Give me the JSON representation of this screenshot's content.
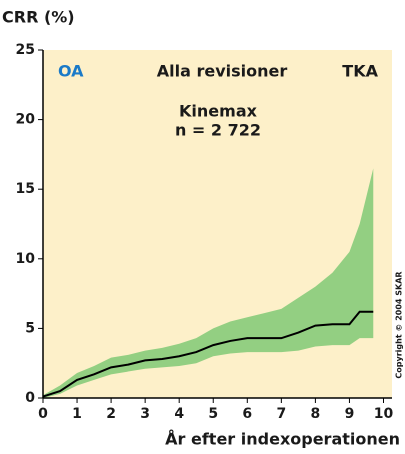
{
  "chart_data": {
    "type": "line",
    "y_label": "CRR (%)",
    "x_label": "År efter indexoperationen",
    "annotations": [
      "OA",
      "Alla revisioner",
      "TKA",
      "Kinemax",
      "n = 2 722",
      "Copyright © 2004 SKAR"
    ],
    "x": [
      0,
      0.5,
      1,
      1.5,
      2,
      2.5,
      3,
      3.5,
      4,
      4.5,
      5,
      5.5,
      6,
      6.5,
      7,
      7.5,
      8,
      8.5,
      9,
      9.3,
      9.7
    ],
    "series": [
      {
        "color": "#000000",
        "values": [
          0.1,
          0.5,
          1.3,
          1.7,
          2.2,
          2.4,
          2.7,
          2.8,
          3.0,
          3.3,
          3.8,
          4.1,
          4.3,
          4.3,
          4.3,
          4.7,
          5.2,
          5.3,
          5.3,
          6.2,
          6.2
        ]
      }
    ],
    "band": {
      "color": "#93cf82",
      "upper": [
        0.2,
        0.9,
        1.8,
        2.3,
        2.9,
        3.1,
        3.4,
        3.6,
        3.9,
        4.3,
        5.0,
        5.5,
        5.8,
        6.1,
        6.4,
        7.2,
        8.0,
        9.0,
        10.5,
        12.5,
        16.5
      ],
      "lower": [
        0,
        0.3,
        0.9,
        1.3,
        1.7,
        1.9,
        2.1,
        2.2,
        2.3,
        2.5,
        3.0,
        3.2,
        3.3,
        3.3,
        3.3,
        3.4,
        3.7,
        3.8,
        3.8,
        4.3,
        4.3
      ]
    },
    "background": "#fdf0c9",
    "xlim": [
      0,
      10.25
    ],
    "ylim": [
      0,
      25
    ],
    "xticks": [
      0,
      1,
      2,
      3,
      4,
      5,
      6,
      7,
      8,
      9,
      10
    ],
    "yticks": [
      0,
      5,
      10,
      15,
      20,
      25
    ]
  }
}
